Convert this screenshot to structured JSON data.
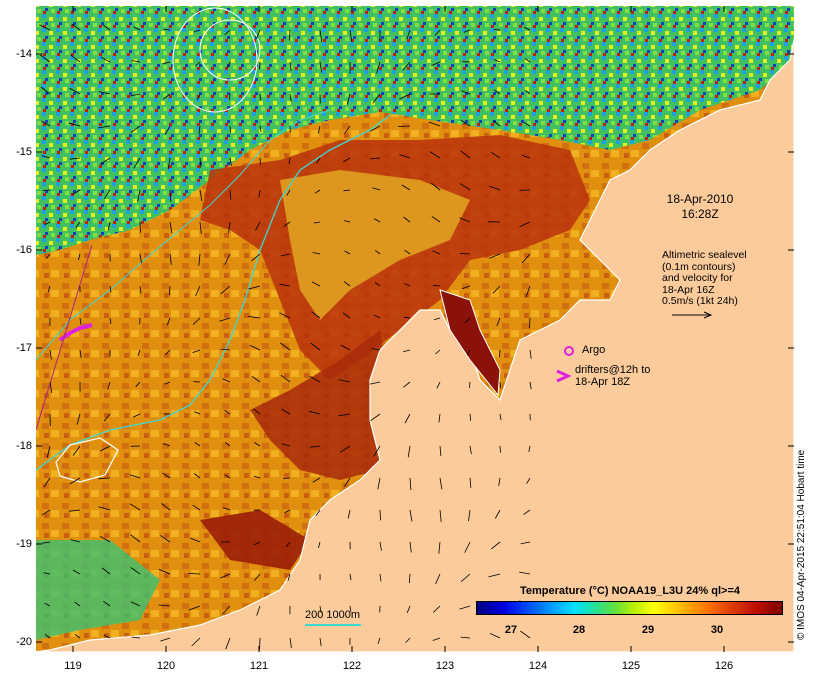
{
  "map": {
    "y_ticks": [
      "-14",
      "-15",
      "-16",
      "-17",
      "-18",
      "-19",
      "-20"
    ],
    "x_ticks": [
      "119",
      "120",
      "121",
      "122",
      "123",
      "124",
      "125",
      "126"
    ]
  },
  "annotations": {
    "date_line1": "18-Apr-2010",
    "date_line2": "16:28Z",
    "alt_lines": [
      "Altimetric sealevel",
      "(0.1m contours)",
      "and velocity for",
      "18-Apr 16Z",
      "0.5m/s (1kt 24h)"
    ],
    "argo_label": "Argo",
    "drifter_line1": "drifters@12h to",
    "drifter_line2": "18-Apr 18Z"
  },
  "colorbar": {
    "title": "Temperature (°C) NOAA19_L3U 24% ql>=4",
    "ticks": [
      "27",
      "28",
      "29",
      "30"
    ]
  },
  "bathymetry_legend": "200  1000m",
  "credit": "© IMOS 04-Apr-2015 22:51:04 Hobart time",
  "colors": {
    "land": "#fccb9c",
    "warm_ocean": "#e08a10",
    "hot_ocean": "#a81e0a",
    "cool_ocean": "#30c0a0",
    "isobath": "#40d8d0",
    "argo": "#e020e0",
    "drifter": "#e020e0"
  }
}
